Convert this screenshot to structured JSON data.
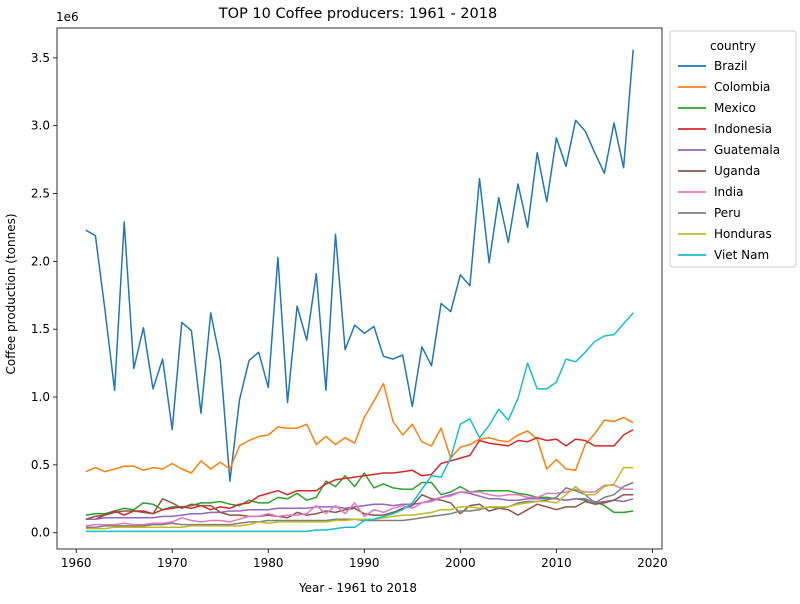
{
  "chart_data": {
    "type": "line",
    "title": "TOP 10 Coffee producers: 1961 - 2018",
    "xlabel": "Year - 1961 to 2018",
    "ylabel": "Coffee production (tonnes)",
    "y_offset_label": "1e6",
    "xlim": [
      1958,
      2021
    ],
    "ylim": [
      -0.12,
      3.72
    ],
    "x_ticks": [
      1960,
      1970,
      1980,
      1990,
      2000,
      2010,
      2020
    ],
    "x_tick_labels": [
      "1960",
      "1970",
      "1980",
      "1990",
      "2000",
      "2010",
      "2020"
    ],
    "y_ticks": [
      0.0,
      0.5,
      1.0,
      1.5,
      2.0,
      2.5,
      3.0,
      3.5
    ],
    "y_tick_labels": [
      "0.0",
      "0.5",
      "1.0",
      "1.5",
      "2.0",
      "2.5",
      "3.0",
      "3.5"
    ],
    "grid": false,
    "legend": {
      "title": "country",
      "placement": "upper-right-outside"
    },
    "x_start": 1961,
    "series": [
      {
        "name": "Brazil",
        "color": "#1f77b4",
        "values": [
          2.23,
          2.19,
          1.64,
          1.05,
          2.29,
          1.21,
          1.51,
          1.06,
          1.28,
          0.76,
          1.55,
          1.49,
          0.88,
          1.62,
          1.27,
          0.38,
          0.98,
          1.27,
          1.33,
          1.07,
          2.03,
          0.96,
          1.67,
          1.42,
          1.91,
          1.05,
          2.2,
          1.35,
          1.53,
          1.47,
          1.52,
          1.3,
          1.28,
          1.31,
          0.93,
          1.37,
          1.23,
          1.69,
          1.63,
          1.9,
          1.82,
          2.61,
          1.99,
          2.47,
          2.14,
          2.57,
          2.25,
          2.8,
          2.44,
          2.91,
          2.7,
          3.04,
          2.96,
          2.8,
          2.65,
          3.02,
          2.69,
          3.56
        ]
      },
      {
        "name": "Colombia",
        "color": "#ff7f0e",
        "values": [
          0.45,
          0.48,
          0.45,
          0.47,
          0.49,
          0.49,
          0.46,
          0.48,
          0.47,
          0.51,
          0.47,
          0.44,
          0.53,
          0.47,
          0.52,
          0.47,
          0.64,
          0.68,
          0.71,
          0.72,
          0.78,
          0.77,
          0.77,
          0.8,
          0.65,
          0.71,
          0.65,
          0.7,
          0.66,
          0.85,
          0.97,
          1.1,
          0.82,
          0.72,
          0.8,
          0.67,
          0.64,
          0.77,
          0.55,
          0.63,
          0.65,
          0.69,
          0.7,
          0.68,
          0.67,
          0.72,
          0.75,
          0.69,
          0.47,
          0.54,
          0.47,
          0.46,
          0.65,
          0.73,
          0.83,
          0.82,
          0.85,
          0.81
        ]
      },
      {
        "name": "Mexico",
        "color": "#2ca02c",
        "values": [
          0.13,
          0.14,
          0.14,
          0.16,
          0.18,
          0.17,
          0.22,
          0.21,
          0.17,
          0.19,
          0.19,
          0.2,
          0.22,
          0.22,
          0.23,
          0.21,
          0.2,
          0.24,
          0.22,
          0.22,
          0.26,
          0.25,
          0.29,
          0.24,
          0.26,
          0.38,
          0.34,
          0.42,
          0.34,
          0.44,
          0.33,
          0.36,
          0.33,
          0.32,
          0.32,
          0.37,
          0.37,
          0.28,
          0.3,
          0.34,
          0.3,
          0.31,
          0.31,
          0.31,
          0.31,
          0.29,
          0.28,
          0.26,
          0.26,
          0.25,
          0.24,
          0.25,
          0.24,
          0.23,
          0.2,
          0.15,
          0.15,
          0.16
        ]
      },
      {
        "name": "Indonesia",
        "color": "#d62728",
        "values": [
          0.1,
          0.1,
          0.13,
          0.16,
          0.13,
          0.16,
          0.16,
          0.14,
          0.17,
          0.18,
          0.19,
          0.18,
          0.2,
          0.17,
          0.19,
          0.18,
          0.21,
          0.22,
          0.27,
          0.29,
          0.31,
          0.28,
          0.31,
          0.31,
          0.31,
          0.36,
          0.39,
          0.4,
          0.41,
          0.42,
          0.43,
          0.44,
          0.44,
          0.45,
          0.46,
          0.42,
          0.43,
          0.51,
          0.53,
          0.55,
          0.57,
          0.68,
          0.66,
          0.65,
          0.64,
          0.68,
          0.67,
          0.7,
          0.68,
          0.69,
          0.64,
          0.69,
          0.68,
          0.64,
          0.64,
          0.64,
          0.72,
          0.76
        ]
      },
      {
        "name": "Guatemala",
        "color": "#9467bd",
        "values": [
          0.1,
          0.1,
          0.11,
          0.11,
          0.11,
          0.11,
          0.11,
          0.11,
          0.12,
          0.12,
          0.13,
          0.14,
          0.14,
          0.15,
          0.15,
          0.16,
          0.16,
          0.17,
          0.17,
          0.17,
          0.18,
          0.18,
          0.18,
          0.18,
          0.19,
          0.19,
          0.19,
          0.18,
          0.19,
          0.2,
          0.21,
          0.21,
          0.2,
          0.21,
          0.21,
          0.22,
          0.24,
          0.26,
          0.28,
          0.3,
          0.29,
          0.27,
          0.25,
          0.25,
          0.24,
          0.24,
          0.25,
          0.25,
          0.25,
          0.25,
          0.24,
          0.25,
          0.25,
          0.22,
          0.23,
          0.24,
          0.23,
          0.25
        ]
      },
      {
        "name": "Uganda",
        "color": "#8c564b",
        "values": [
          0.1,
          0.12,
          0.13,
          0.15,
          0.16,
          0.16,
          0.15,
          0.14,
          0.25,
          0.22,
          0.18,
          0.21,
          0.2,
          0.2,
          0.15,
          0.13,
          0.13,
          0.12,
          0.12,
          0.13,
          0.12,
          0.11,
          0.15,
          0.13,
          0.14,
          0.16,
          0.15,
          0.17,
          0.18,
          0.14,
          0.13,
          0.13,
          0.15,
          0.18,
          0.2,
          0.28,
          0.25,
          0.24,
          0.22,
          0.14,
          0.2,
          0.21,
          0.16,
          0.18,
          0.17,
          0.13,
          0.17,
          0.21,
          0.19,
          0.17,
          0.19,
          0.19,
          0.23,
          0.21,
          0.22,
          0.24,
          0.28,
          0.28
        ]
      },
      {
        "name": "India",
        "color": "#e377c2",
        "values": [
          0.05,
          0.06,
          0.06,
          0.06,
          0.07,
          0.06,
          0.06,
          0.07,
          0.07,
          0.08,
          0.11,
          0.09,
          0.08,
          0.09,
          0.09,
          0.08,
          0.1,
          0.12,
          0.12,
          0.14,
          0.12,
          0.13,
          0.13,
          0.14,
          0.2,
          0.14,
          0.2,
          0.14,
          0.22,
          0.12,
          0.17,
          0.15,
          0.18,
          0.2,
          0.18,
          0.22,
          0.23,
          0.26,
          0.27,
          0.3,
          0.3,
          0.3,
          0.28,
          0.27,
          0.28,
          0.28,
          0.26,
          0.26,
          0.29,
          0.29,
          0.3,
          0.32,
          0.3,
          0.3,
          0.35,
          0.35,
          0.32,
          0.32
        ]
      },
      {
        "name": "Peru",
        "color": "#7f7f7f",
        "values": [
          0.04,
          0.04,
          0.05,
          0.05,
          0.05,
          0.05,
          0.05,
          0.06,
          0.06,
          0.07,
          0.06,
          0.06,
          0.06,
          0.06,
          0.06,
          0.06,
          0.07,
          0.08,
          0.08,
          0.09,
          0.09,
          0.09,
          0.09,
          0.09,
          0.09,
          0.09,
          0.1,
          0.1,
          0.1,
          0.09,
          0.09,
          0.09,
          0.09,
          0.09,
          0.1,
          0.11,
          0.12,
          0.13,
          0.14,
          0.16,
          0.16,
          0.17,
          0.19,
          0.18,
          0.19,
          0.22,
          0.23,
          0.23,
          0.24,
          0.26,
          0.33,
          0.31,
          0.28,
          0.22,
          0.26,
          0.28,
          0.34,
          0.37
        ]
      },
      {
        "name": "Honduras",
        "color": "#bcbd22",
        "values": [
          0.03,
          0.03,
          0.03,
          0.04,
          0.04,
          0.04,
          0.04,
          0.04,
          0.04,
          0.04,
          0.04,
          0.05,
          0.05,
          0.05,
          0.05,
          0.05,
          0.05,
          0.06,
          0.08,
          0.07,
          0.08,
          0.08,
          0.08,
          0.08,
          0.08,
          0.08,
          0.09,
          0.09,
          0.1,
          0.1,
          0.1,
          0.11,
          0.12,
          0.13,
          0.13,
          0.14,
          0.15,
          0.17,
          0.17,
          0.19,
          0.19,
          0.18,
          0.19,
          0.19,
          0.19,
          0.21,
          0.22,
          0.23,
          0.23,
          0.22,
          0.28,
          0.34,
          0.28,
          0.28,
          0.34,
          0.36,
          0.48,
          0.48
        ]
      },
      {
        "name": "Viet Nam",
        "color": "#17becf",
        "values": [
          0.01,
          0.01,
          0.01,
          0.01,
          0.01,
          0.01,
          0.01,
          0.01,
          0.01,
          0.01,
          0.01,
          0.01,
          0.01,
          0.01,
          0.01,
          0.01,
          0.01,
          0.01,
          0.01,
          0.01,
          0.01,
          0.01,
          0.01,
          0.01,
          0.02,
          0.02,
          0.03,
          0.04,
          0.04,
          0.09,
          0.1,
          0.12,
          0.14,
          0.17,
          0.22,
          0.32,
          0.42,
          0.41,
          0.55,
          0.8,
          0.84,
          0.7,
          0.79,
          0.91,
          0.83,
          0.99,
          1.25,
          1.06,
          1.06,
          1.11,
          1.28,
          1.26,
          1.33,
          1.41,
          1.45,
          1.46,
          1.54,
          1.62
        ]
      }
    ]
  }
}
